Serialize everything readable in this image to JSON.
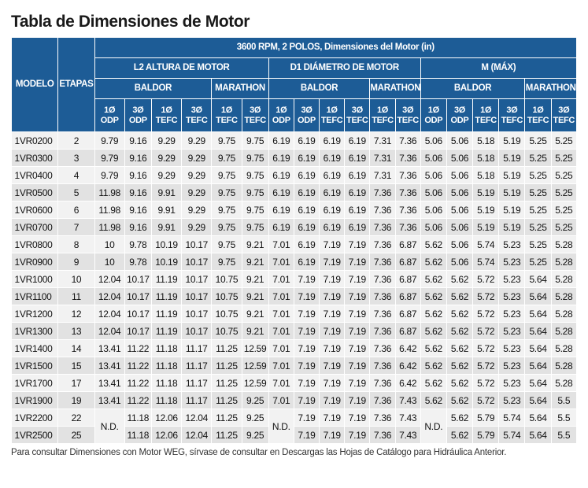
{
  "title": "Tabla de Dimensiones de Motor",
  "header": {
    "modelo": "MODELO",
    "etapas": "ETAPAS",
    "rpm_header": "3600 RPM, 2 POLOS, Dimensiones del Motor (in)",
    "groups": [
      "L2 ALTURA DE MOTOR",
      "D1 DIÁMETRO DE MOTOR",
      "M (MÁX)"
    ],
    "brand_baldor": "BALDOR",
    "brand_marathon": "MARATHON",
    "sub": [
      [
        "1Ø",
        "ODP"
      ],
      [
        "3Ø",
        "ODP"
      ],
      [
        "1Ø",
        "TEFC"
      ],
      [
        "3Ø",
        "TEFC"
      ],
      [
        "1Ø",
        "TEFC"
      ],
      [
        "3Ø",
        "TEFC"
      ],
      [
        "1Ø",
        "ODP"
      ],
      [
        "3Ø",
        "ODP"
      ],
      [
        "1Ø",
        "TEFC"
      ],
      [
        "3Ø",
        "TEFC"
      ],
      [
        "1Ø",
        "TEFC"
      ],
      [
        "3Ø",
        "TEFC"
      ],
      [
        "1Ø",
        "ODP"
      ],
      [
        "3Ø",
        "ODP"
      ],
      [
        "1Ø",
        "TEFC"
      ],
      [
        "3Ø",
        "TEFC"
      ],
      [
        "1Ø",
        "TEFC"
      ],
      [
        "3Ø",
        "TEFC"
      ]
    ]
  },
  "rows": [
    {
      "model": "1VR0200",
      "stages": "2",
      "values": [
        "9.79",
        "9.16",
        "9.29",
        "9.29",
        "9.75",
        "9.75",
        "6.19",
        "6.19",
        "6.19",
        "6.19",
        "7.31",
        "7.36",
        "5.06",
        "5.06",
        "5.18",
        "5.19",
        "5.25",
        "5.25"
      ]
    },
    {
      "model": "1VR0300",
      "stages": "3",
      "values": [
        "9.79",
        "9.16",
        "9.29",
        "9.29",
        "9.75",
        "9.75",
        "6.19",
        "6.19",
        "6.19",
        "6.19",
        "7.31",
        "7.36",
        "5.06",
        "5.06",
        "5.18",
        "5.19",
        "5.25",
        "5.25"
      ]
    },
    {
      "model": "1VR0400",
      "stages": "4",
      "values": [
        "9.79",
        "9.16",
        "9.29",
        "9.29",
        "9.75",
        "9.75",
        "6.19",
        "6.19",
        "6.19",
        "6.19",
        "7.31",
        "7.36",
        "5.06",
        "5.06",
        "5.18",
        "5.19",
        "5.25",
        "5.25"
      ]
    },
    {
      "model": "1VR0500",
      "stages": "5",
      "values": [
        "11.98",
        "9.16",
        "9.91",
        "9.29",
        "9.75",
        "9.75",
        "6.19",
        "6.19",
        "6.19",
        "6.19",
        "7.36",
        "7.36",
        "5.06",
        "5.06",
        "5.19",
        "5.19",
        "5.25",
        "5.25"
      ]
    },
    {
      "model": "1VR0600",
      "stages": "6",
      "values": [
        "11.98",
        "9.16",
        "9.91",
        "9.29",
        "9.75",
        "9.75",
        "6.19",
        "6.19",
        "6.19",
        "6.19",
        "7.36",
        "7.36",
        "5.06",
        "5.06",
        "5.19",
        "5.19",
        "5.25",
        "5.25"
      ]
    },
    {
      "model": "1VR0700",
      "stages": "7",
      "values": [
        "11.98",
        "9.16",
        "9.91",
        "9.29",
        "9.75",
        "9.75",
        "6.19",
        "6.19",
        "6.19",
        "6.19",
        "7.36",
        "7.36",
        "5.06",
        "5.06",
        "5.19",
        "5.19",
        "5.25",
        "5.25"
      ]
    },
    {
      "model": "1VR0800",
      "stages": "8",
      "values": [
        "10",
        "9.78",
        "10.19",
        "10.17",
        "9.75",
        "9.21",
        "7.01",
        "6.19",
        "7.19",
        "7.19",
        "7.36",
        "6.87",
        "5.62",
        "5.06",
        "5.74",
        "5.23",
        "5.25",
        "5.28"
      ]
    },
    {
      "model": "1VR0900",
      "stages": "9",
      "values": [
        "10",
        "9.78",
        "10.19",
        "10.17",
        "9.75",
        "9.21",
        "7.01",
        "6.19",
        "7.19",
        "7.19",
        "7.36",
        "6.87",
        "5.62",
        "5.06",
        "5.74",
        "5.23",
        "5.25",
        "5.28"
      ]
    },
    {
      "model": "1VR1000",
      "stages": "10",
      "values": [
        "12.04",
        "10.17",
        "11.19",
        "10.17",
        "10.75",
        "9.21",
        "7.01",
        "7.19",
        "7.19",
        "7.19",
        "7.36",
        "6.87",
        "5.62",
        "5.62",
        "5.72",
        "5.23",
        "5.64",
        "5.28"
      ]
    },
    {
      "model": "1VR1100",
      "stages": "11",
      "values": [
        "12.04",
        "10.17",
        "11.19",
        "10.17",
        "10.75",
        "9.21",
        "7.01",
        "7.19",
        "7.19",
        "7.19",
        "7.36",
        "6.87",
        "5.62",
        "5.62",
        "5.72",
        "5.23",
        "5.64",
        "5.28"
      ]
    },
    {
      "model": "1VR1200",
      "stages": "12",
      "values": [
        "12.04",
        "10.17",
        "11.19",
        "10.17",
        "10.75",
        "9.21",
        "7.01",
        "7.19",
        "7.19",
        "7.19",
        "7.36",
        "6.87",
        "5.62",
        "5.62",
        "5.72",
        "5.23",
        "5.64",
        "5.28"
      ]
    },
    {
      "model": "1VR1300",
      "stages": "13",
      "values": [
        "12.04",
        "10.17",
        "11.19",
        "10.17",
        "10.75",
        "9.21",
        "7.01",
        "7.19",
        "7.19",
        "7.19",
        "7.36",
        "6.87",
        "5.62",
        "5.62",
        "5.72",
        "5.23",
        "5.64",
        "5.28"
      ]
    },
    {
      "model": "1VR1400",
      "stages": "14",
      "values": [
        "13.41",
        "11.22",
        "11.18",
        "11.17",
        "11.25",
        "12.59",
        "7.01",
        "7.19",
        "7.19",
        "7.19",
        "7.36",
        "6.42",
        "5.62",
        "5.62",
        "5.72",
        "5.23",
        "5.64",
        "5.28"
      ]
    },
    {
      "model": "1VR1500",
      "stages": "15",
      "values": [
        "13.41",
        "11.22",
        "11.18",
        "11.17",
        "11.25",
        "12.59",
        "7.01",
        "7.19",
        "7.19",
        "7.19",
        "7.36",
        "6.42",
        "5.62",
        "5.62",
        "5.72",
        "5.23",
        "5.64",
        "5.28"
      ]
    },
    {
      "model": "1VR1700",
      "stages": "17",
      "values": [
        "13.41",
        "11.22",
        "11.18",
        "11.17",
        "11.25",
        "12.59",
        "7.01",
        "7.19",
        "7.19",
        "7.19",
        "7.36",
        "6.42",
        "5.62",
        "5.62",
        "5.72",
        "5.23",
        "5.64",
        "5.28"
      ]
    },
    {
      "model": "1VR1900",
      "stages": "19",
      "values": [
        "13.41",
        "11.22",
        "11.18",
        "11.17",
        "11.25",
        "9.25",
        "7.01",
        "7.19",
        "7.19",
        "7.19",
        "7.36",
        "7.43",
        "5.62",
        "5.62",
        "5.72",
        "5.23",
        "5.64",
        "5.5"
      ]
    },
    {
      "model": "1VR2200",
      "stages": "22",
      "values": [
        "N.D.",
        "11.18",
        "12.06",
        "12.04",
        "11.25",
        "9.25",
        "N.D.",
        "7.19",
        "7.19",
        "7.19",
        "7.36",
        "7.43",
        "N.D.",
        "5.62",
        "5.79",
        "5.74",
        "5.64",
        "5.5"
      ]
    },
    {
      "model": "1VR2500",
      "stages": "25",
      "values": [
        "N.D.",
        "11.18",
        "12.06",
        "12.04",
        "11.25",
        "9.25",
        "N.D.",
        "7.19",
        "7.19",
        "7.19",
        "7.36",
        "7.43",
        "N.D.",
        "5.62",
        "5.79",
        "5.74",
        "5.64",
        "5.5"
      ]
    }
  ],
  "footnote": "Para consultar Dimensiones con Motor WEG, sírvase de consultar en Descargas las Hojas de Catálogo para Hidráulica Anterior.",
  "colors": {
    "header_bg": "#1d5c96",
    "header_text": "#ffffff",
    "row_light": "#f2f2f2",
    "row_dark": "#e2e2e2"
  }
}
